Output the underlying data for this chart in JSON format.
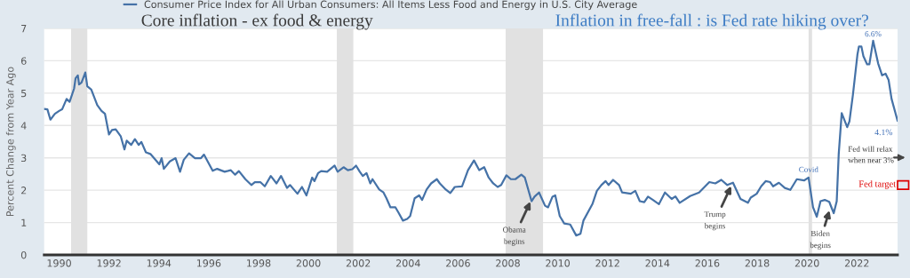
{
  "chart_data": {
    "type": "line",
    "title": "Core inflation - ex food & energy",
    "subtitle": "Inflation in free-fall : is Fed rate hiking over?",
    "ylabel": "Percent Change from Year Ago",
    "series": [
      {
        "name": "Consumer Price Index for All Urban Consumers: All Items Less Food and Energy in U.S. City Average",
        "color": "#4572a7",
        "x": [
          1989.4,
          1989.53,
          1989.65,
          1989.83,
          1990.0,
          1990.12,
          1990.3,
          1990.42,
          1990.6,
          1990.66,
          1990.75,
          1990.8,
          1990.9,
          1991.05,
          1991.13,
          1991.29,
          1991.53,
          1991.7,
          1991.84,
          1992.0,
          1992.12,
          1992.27,
          1992.47,
          1992.62,
          1992.71,
          1992.89,
          1993.04,
          1993.19,
          1993.3,
          1993.48,
          1993.66,
          1994.02,
          1994.11,
          1994.2,
          1994.44,
          1994.67,
          1994.85,
          1995.0,
          1995.21,
          1995.45,
          1995.69,
          1995.81,
          1996.16,
          1996.34,
          1996.64,
          1996.88,
          1997.06,
          1997.21,
          1997.47,
          1997.71,
          1997.85,
          1998.07,
          1998.25,
          1998.49,
          1998.72,
          1998.9,
          1999.14,
          1999.26,
          1999.56,
          1999.74,
          1999.92,
          2000.15,
          2000.24,
          2000.39,
          2000.51,
          2000.75,
          2001.05,
          2001.17,
          2001.41,
          2001.58,
          2001.76,
          2001.91,
          2002.06,
          2002.18,
          2002.33,
          2002.48,
          2002.57,
          2002.84,
          2003.01,
          2003.13,
          2003.29,
          2003.49,
          2003.61,
          2003.79,
          2003.96,
          2004.08,
          2004.26,
          2004.44,
          2004.56,
          2004.74,
          2004.92,
          2005.15,
          2005.27,
          2005.51,
          2005.69,
          2005.87,
          2006.16,
          2006.4,
          2006.64,
          2006.85,
          2007.05,
          2007.23,
          2007.41,
          2007.59,
          2007.73,
          2007.94,
          2008.12,
          2008.3,
          2008.54,
          2008.68,
          2008.95,
          2009.07,
          2009.25,
          2009.49,
          2009.61,
          2009.79,
          2009.9,
          2010.08,
          2010.26,
          2010.5,
          2010.74,
          2010.91,
          2011.03,
          2011.39,
          2011.57,
          2011.75,
          2011.92,
          2012.04,
          2012.22,
          2012.46,
          2012.58,
          2012.93,
          2013.11,
          2013.29,
          2013.47,
          2013.62,
          2013.82,
          2014.06,
          2014.3,
          2014.57,
          2014.72,
          2014.89,
          2015.31,
          2015.67,
          2016.08,
          2016.32,
          2016.56,
          2016.8,
          2017.03,
          2017.33,
          2017.63,
          2017.74,
          2017.98,
          2018.16,
          2018.34,
          2018.52,
          2018.64,
          2018.87,
          2019.11,
          2019.33,
          2019.59,
          2019.88,
          2020.06,
          2020.24,
          2020.39,
          2020.54,
          2020.71,
          2020.89,
          2021.07,
          2021.19,
          2021.27,
          2021.39,
          2021.61,
          2021.7,
          2021.84,
          2022.02,
          2022.08,
          2022.18,
          2022.26,
          2022.41,
          2022.5,
          2022.65,
          2022.85,
          2023.01,
          2023.15,
          2023.27,
          2023.39,
          2023.63
        ],
        "values": [
          4.51,
          4.5,
          4.18,
          4.36,
          4.45,
          4.5,
          4.82,
          4.73,
          5.14,
          5.46,
          5.55,
          5.27,
          5.33,
          5.64,
          5.21,
          5.11,
          4.63,
          4.45,
          4.36,
          3.72,
          3.86,
          3.88,
          3.67,
          3.26,
          3.53,
          3.4,
          3.58,
          3.4,
          3.49,
          3.17,
          3.12,
          2.8,
          2.99,
          2.66,
          2.89,
          2.99,
          2.57,
          2.94,
          3.14,
          2.99,
          2.99,
          3.1,
          2.6,
          2.66,
          2.57,
          2.62,
          2.48,
          2.59,
          2.34,
          2.16,
          2.25,
          2.25,
          2.12,
          2.44,
          2.21,
          2.44,
          2.07,
          2.16,
          1.89,
          2.1,
          1.84,
          2.39,
          2.28,
          2.53,
          2.59,
          2.57,
          2.76,
          2.57,
          2.71,
          2.62,
          2.65,
          2.76,
          2.57,
          2.44,
          2.53,
          2.21,
          2.34,
          2.02,
          1.93,
          1.75,
          1.47,
          1.47,
          1.31,
          1.06,
          1.11,
          1.2,
          1.75,
          1.84,
          1.7,
          2.02,
          2.21,
          2.34,
          2.21,
          2.02,
          1.91,
          2.1,
          2.12,
          2.62,
          2.92,
          2.62,
          2.71,
          2.39,
          2.21,
          2.1,
          2.16,
          2.46,
          2.34,
          2.34,
          2.48,
          2.39,
          1.66,
          1.8,
          1.93,
          1.52,
          1.47,
          1.8,
          1.84,
          1.2,
          0.97,
          0.94,
          0.6,
          0.65,
          1.06,
          1.57,
          1.98,
          2.16,
          2.28,
          2.16,
          2.32,
          2.16,
          1.93,
          1.89,
          1.98,
          1.66,
          1.63,
          1.8,
          1.7,
          1.57,
          1.93,
          1.73,
          1.81,
          1.61,
          1.82,
          1.93,
          2.25,
          2.21,
          2.32,
          2.16,
          2.23,
          1.73,
          1.61,
          1.77,
          1.89,
          2.12,
          2.28,
          2.25,
          2.12,
          2.23,
          2.07,
          2.01,
          2.34,
          2.3,
          2.39,
          1.47,
          1.18,
          1.66,
          1.7,
          1.64,
          1.29,
          1.66,
          3.12,
          4.38,
          3.95,
          4.13,
          4.95,
          6.19,
          6.44,
          6.44,
          6.14,
          5.89,
          5.89,
          6.62,
          5.92,
          5.55,
          5.6,
          5.41,
          4.82,
          4.15
        ]
      }
    ],
    "xlim": [
      1989.4,
      2023.63
    ],
    "xticks": [
      1990,
      1992,
      1994,
      1996,
      1998,
      2000,
      2002,
      2004,
      2006,
      2008,
      2010,
      2012,
      2014,
      2016,
      2018,
      2020,
      2022
    ],
    "ylim": [
      0,
      7
    ],
    "yticks": [
      0,
      1,
      2,
      3,
      4,
      5,
      6,
      7
    ],
    "grid": "y",
    "legend": "top left",
    "bands": [
      {
        "axis": "x",
        "from": 1990.48,
        "to": 1991.13,
        "color": "#e1e1e1"
      },
      {
        "axis": "x",
        "from": 2001.14,
        "to": 2001.8,
        "color": "#e1e1e1"
      },
      {
        "axis": "x",
        "from": 2007.91,
        "to": 2009.41,
        "color": "#e1e1e1"
      },
      {
        "axis": "x",
        "from": 2020.06,
        "to": 2020.2,
        "color": "#e1e1e1"
      }
    ],
    "annotations": [
      {
        "text": "6.6%",
        "x": 2022.65,
        "y": 6.62
      },
      {
        "text": "4.1%",
        "x": 2023.63,
        "y": 4.15
      },
      {
        "text": "Covid",
        "x": 2020.06,
        "y": 2.39
      },
      {
        "text": "Obama\nbegins",
        "x": 2008.95,
        "y": 1.72
      },
      {
        "text": "Trump\nbegins",
        "x": 2017.0,
        "y": 2.2
      },
      {
        "text": "Biden\nbegins",
        "x": 2020.93,
        "y": 1.45
      },
      "Fed will relax\nwhen near 3%",
      "Fed target"
    ]
  }
}
